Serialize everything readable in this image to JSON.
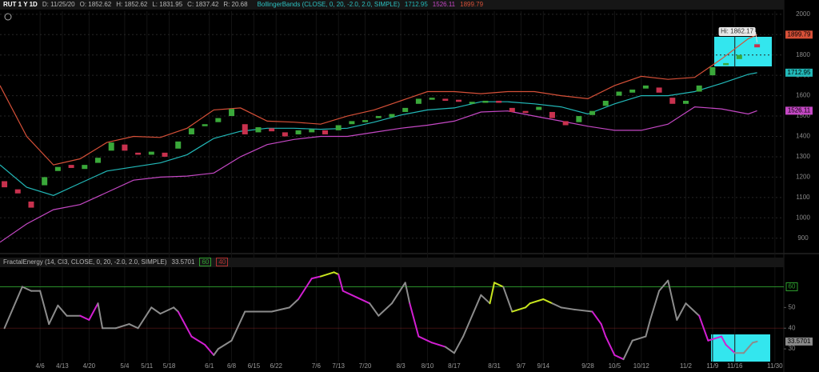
{
  "chart_data": [
    {
      "type": "candlestick",
      "title": "RUT 1 Y 1D",
      "header_fields": [
        "D: 11/25/20",
        "O: 1852.62",
        "H: 1852.62",
        "L: 1831.95",
        "C: 1837.42",
        "R: 20.68"
      ],
      "study": "BollingerBands (CLOSE, 0, 20, -2.0, 2.0, SIMPLE)",
      "x": [
        1,
        4,
        7,
        10,
        13,
        16,
        19,
        22,
        25,
        28,
        31,
        34,
        37,
        40,
        43,
        46,
        49,
        52,
        55,
        58,
        61,
        64,
        67,
        70,
        73,
        76,
        79,
        82,
        85,
        88,
        91,
        94,
        97,
        100,
        103,
        106,
        109,
        112,
        115,
        118,
        121,
        124,
        127,
        130,
        133,
        136,
        139,
        142,
        145,
        148,
        151,
        154,
        157,
        160,
        163,
        166,
        170
      ],
      "open": [
        1180,
        1140,
        1080,
        1160,
        1230,
        1260,
        1240,
        1270,
        1330,
        1360,
        1320,
        1310,
        1320,
        1340,
        1410,
        1450,
        1470,
        1500,
        1460,
        1420,
        1440,
        1420,
        1410,
        1420,
        1430,
        1430,
        1460,
        1470,
        1490,
        1495,
        1520,
        1560,
        1580,
        1585,
        1580,
        1560,
        1565,
        1575,
        1540,
        1525,
        1530,
        1520,
        1475,
        1470,
        1505,
        1550,
        1600,
        1615,
        1635,
        1640,
        1590,
        1560,
        1620,
        1700,
        1750,
        1780,
        1852.62
      ],
      "close": [
        1150,
        1120,
        1050,
        1200,
        1250,
        1245,
        1260,
        1295,
        1370,
        1330,
        1310,
        1325,
        1300,
        1375,
        1440,
        1460,
        1490,
        1535,
        1410,
        1445,
        1425,
        1400,
        1430,
        1435,
        1410,
        1455,
        1475,
        1480,
        1500,
        1510,
        1540,
        1585,
        1590,
        1575,
        1570,
        1570,
        1575,
        1565,
        1520,
        1515,
        1545,
        1490,
        1455,
        1500,
        1525,
        1575,
        1620,
        1630,
        1650,
        1615,
        1560,
        1575,
        1650,
        1740,
        1760,
        1800,
        1837.42
      ],
      "up_color": "#3aa83a",
      "down_color": "#c8314e",
      "bands": {
        "x": [
          0,
          6,
          12,
          18,
          24,
          30,
          36,
          42,
          48,
          54,
          60,
          66,
          72,
          78,
          84,
          90,
          96,
          102,
          108,
          114,
          120,
          126,
          132,
          138,
          144,
          150,
          156,
          162,
          168,
          170
        ],
        "series": [
          {
            "color": "#22b8b8",
            "values": [
              1260,
              1150,
              1110,
              1170,
              1230,
              1250,
              1270,
              1310,
              1390,
              1425,
              1440,
              1440,
              1435,
              1440,
              1470,
              1505,
              1530,
              1540,
              1570,
              1570,
              1560,
              1545,
              1510,
              1560,
              1600,
              1600,
              1620,
              1660,
              1705,
              1712.95
            ]
          },
          {
            "color": "#c548c5",
            "values": [
              880,
              970,
              1040,
              1065,
              1125,
              1185,
              1200,
              1205,
              1220,
              1300,
              1360,
              1385,
              1400,
              1400,
              1420,
              1440,
              1455,
              1475,
              1520,
              1525,
              1500,
              1475,
              1450,
              1430,
              1430,
              1460,
              1545,
              1535,
              1510,
              1526.11
            ]
          },
          {
            "color": "#d65038",
            "values": [
              1650,
              1400,
              1260,
              1290,
              1370,
              1400,
              1395,
              1440,
              1530,
              1540,
              1475,
              1470,
              1460,
              1500,
              1530,
              1575,
              1620,
              1620,
              1610,
              1620,
              1620,
              1600,
              1585,
              1650,
              1695,
              1680,
              1690,
              1780,
              1880,
              1899.79
            ]
          }
        ]
      },
      "annotation": {
        "label": "Hi: 1862.17",
        "x": 170,
        "y": 1862.17
      },
      "xlim": [
        0,
        176
      ],
      "ylim": [
        840,
        2015
      ],
      "yticks": [
        900,
        1000,
        1100,
        1200,
        1300,
        1400,
        1500,
        1600,
        1700,
        1800,
        1900,
        2000
      ],
      "grid": true
    },
    {
      "type": "line",
      "title": "FractalEnergy (14, CI3, CLOSE, 0, 20, -2.0, 2.0, SIMPLE)",
      "x": [
        1,
        3,
        5,
        7,
        9,
        11,
        13,
        15,
        18,
        20,
        22,
        23,
        26,
        29,
        31,
        34,
        36,
        39,
        40,
        41,
        43,
        46,
        48,
        49,
        52,
        55,
        57,
        61,
        65,
        67,
        70,
        72,
        75,
        76,
        77,
        80,
        83,
        85,
        88,
        91,
        92,
        94,
        97,
        100,
        102,
        104,
        108,
        110,
        111,
        113,
        115,
        118,
        119,
        122,
        124,
        126,
        129,
        133,
        135,
        136,
        138,
        140,
        142,
        145,
        146,
        148,
        150,
        152,
        154,
        157,
        159,
        162,
        163,
        165,
        167,
        169,
        170
      ],
      "values": [
        40,
        50,
        60,
        58,
        58,
        42,
        51,
        46,
        46,
        44,
        52,
        40,
        40,
        42,
        40,
        50,
        47,
        50,
        48,
        44,
        36,
        32,
        27,
        30,
        34,
        48,
        48,
        48,
        50,
        54,
        64,
        65,
        67,
        66,
        58,
        55,
        52,
        46,
        52,
        62,
        52,
        36,
        33,
        31,
        28,
        36,
        56,
        52,
        62,
        60,
        48,
        50,
        52,
        54,
        52,
        50,
        49,
        48,
        42,
        36,
        27,
        25,
        34,
        36,
        44,
        58,
        63,
        44,
        52,
        46,
        34,
        36,
        32,
        28,
        28,
        33,
        33.5701
      ],
      "point_colors": [
        "#8c8c8c",
        "#8c8c8c",
        "#8c8c8c",
        "#8c8c8c",
        "#8c8c8c",
        "#8c8c8c",
        "#8c8c8c",
        "#8c8c8c",
        "#8c8c8c",
        "#d21ed2",
        "#d21ed2",
        "#8c8c8c",
        "#8c8c8c",
        "#8c8c8c",
        "#8c8c8c",
        "#8c8c8c",
        "#8c8c8c",
        "#8c8c8c",
        "#8c8c8c",
        "#d21ed2",
        "#d21ed2",
        "#d21ed2",
        "#d21ed2",
        "#8c8c8c",
        "#8c8c8c",
        "#8c8c8c",
        "#8c8c8c",
        "#8c8c8c",
        "#8c8c8c",
        "#8c8c8c",
        "#d21ed2",
        "#d21ed2",
        "#c8e61e",
        "#c8e61e",
        "#d21ed2",
        "#d21ed2",
        "#d21ed2",
        "#8c8c8c",
        "#8c8c8c",
        "#8c8c8c",
        "#8c8c8c",
        "#d21ed2",
        "#d21ed2",
        "#d21ed2",
        "#8c8c8c",
        "#8c8c8c",
        "#8c8c8c",
        "#8c8c8c",
        "#c8e61e",
        "#c8e61e",
        "#8c8c8c",
        "#c8e61e",
        "#c8e61e",
        "#c8e61e",
        "#c8e61e",
        "#8c8c8c",
        "#8c8c8c",
        "#8c8c8c",
        "#d21ed2",
        "#d21ed2",
        "#d21ed2",
        "#d21ed2",
        "#8c8c8c",
        "#8c8c8c",
        "#8c8c8c",
        "#8c8c8c",
        "#8c8c8c",
        "#8c8c8c",
        "#8c8c8c",
        "#8c8c8c",
        "#d21ed2",
        "#d21ed2",
        "#d21ed2",
        "#d21ed2",
        "#8c8c8c",
        "#8c8c8c",
        "#8c8c8c"
      ],
      "levels": [
        {
          "value": 60,
          "color": "#2e9e2e"
        },
        {
          "value": 40,
          "color": "#b03030"
        }
      ],
      "xlim": [
        0,
        176
      ],
      "ylim": [
        20,
        71
      ],
      "yticks": [
        30,
        40,
        50,
        60
      ],
      "xticks": [
        {
          "value": 9,
          "label": "4/6"
        },
        {
          "value": 14,
          "label": "4/13"
        },
        {
          "value": 20,
          "label": "4/20"
        },
        {
          "value": 28,
          "label": "5/4"
        },
        {
          "value": 33,
          "label": "5/11"
        },
        {
          "value": 38,
          "label": "5/18"
        },
        {
          "value": 47,
          "label": "6/1"
        },
        {
          "value": 52,
          "label": "6/8"
        },
        {
          "value": 57,
          "label": "6/15"
        },
        {
          "value": 62,
          "label": "6/22"
        },
        {
          "value": 71,
          "label": "7/6"
        },
        {
          "value": 76,
          "label": "7/13"
        },
        {
          "value": 82,
          "label": "7/20"
        },
        {
          "value": 90,
          "label": "8/3"
        },
        {
          "value": 96,
          "label": "8/10"
        },
        {
          "value": 102,
          "label": "8/17"
        },
        {
          "value": 111,
          "label": "8/31"
        },
        {
          "value": 117,
          "label": "9/7"
        },
        {
          "value": 122,
          "label": "9/14"
        },
        {
          "value": 132,
          "label": "9/28"
        },
        {
          "value": 138,
          "label": "10/5"
        },
        {
          "value": 144,
          "label": "10/12"
        },
        {
          "value": 154,
          "label": "11/2"
        },
        {
          "value": 160,
          "label": "11/9"
        },
        {
          "value": 165,
          "label": "11/16"
        },
        {
          "value": 174,
          "label": "11/30"
        }
      ]
    }
  ]
}
